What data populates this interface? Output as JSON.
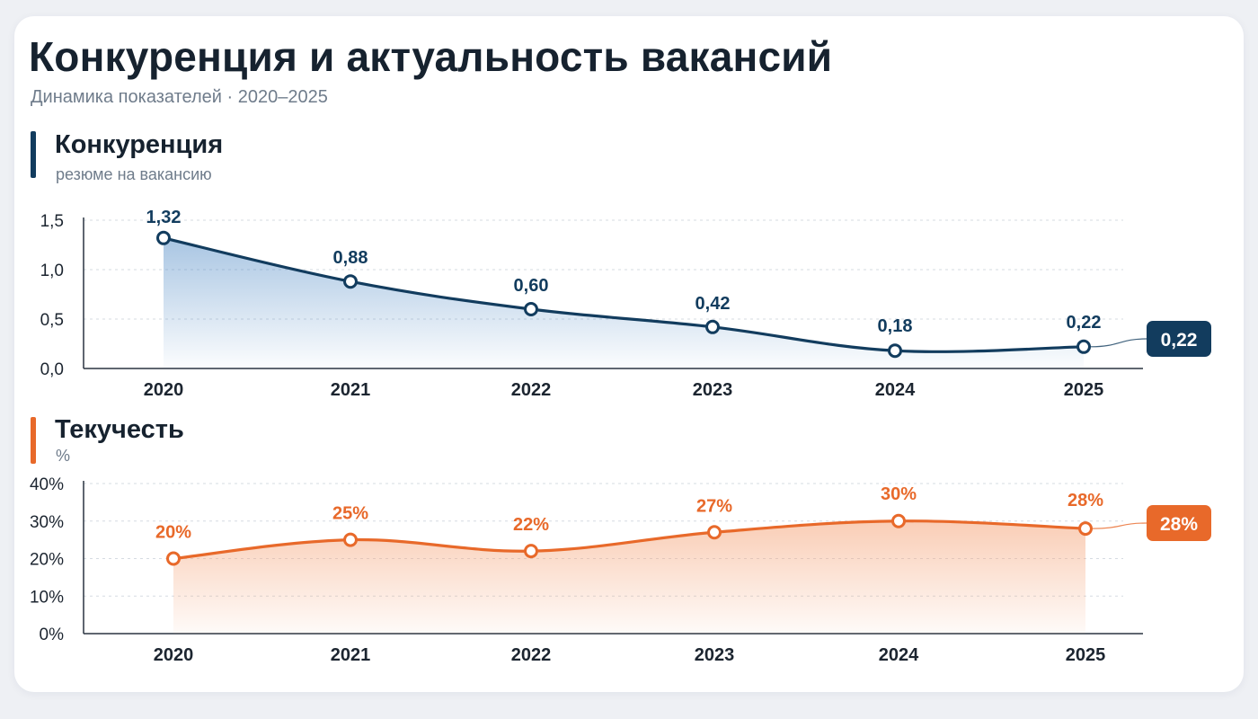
{
  "header": {
    "title": "Конкуренция и актуальность вакансий",
    "subtitle": "Динамика показателей · 2020–2025"
  },
  "chart_data": [
    {
      "type": "area",
      "title": "Конкуренция",
      "subtitle": "резюме на вакансию",
      "categories": [
        "2020",
        "2021",
        "2022",
        "2023",
        "2024",
        "2025"
      ],
      "values": [
        1.32,
        0.88,
        0.6,
        0.42,
        0.18,
        0.22
      ],
      "data_labels": [
        "1,32",
        "0,88",
        "0,60",
        "0,42",
        "0,18",
        "0,22"
      ],
      "ylim": [
        0,
        1.5
      ],
      "yticks": [
        0,
        0.5,
        1.0,
        1.5
      ],
      "ytick_labels": [
        "0,0",
        "0,5",
        "1,0",
        "1,5"
      ],
      "grid": true,
      "end_badge": "0,22",
      "color": "#123c5e",
      "fill_color": "#3f7fc0"
    },
    {
      "type": "area",
      "title": "Текучесть",
      "subtitle": "%",
      "categories": [
        "2020",
        "2021",
        "2022",
        "2023",
        "2024",
        "2025"
      ],
      "values": [
        20,
        25,
        22,
        27,
        30,
        28
      ],
      "data_labels": [
        "20%",
        "25%",
        "22%",
        "27%",
        "30%",
        "28%"
      ],
      "ylim": [
        0,
        40
      ],
      "yticks": [
        0,
        10,
        20,
        30,
        40
      ],
      "ytick_labels": [
        "0%",
        "10%",
        "20%",
        "30%",
        "40%"
      ],
      "grid": true,
      "end_badge": "28%",
      "color": "#e8692a",
      "fill_color": "#f5a57a"
    }
  ]
}
